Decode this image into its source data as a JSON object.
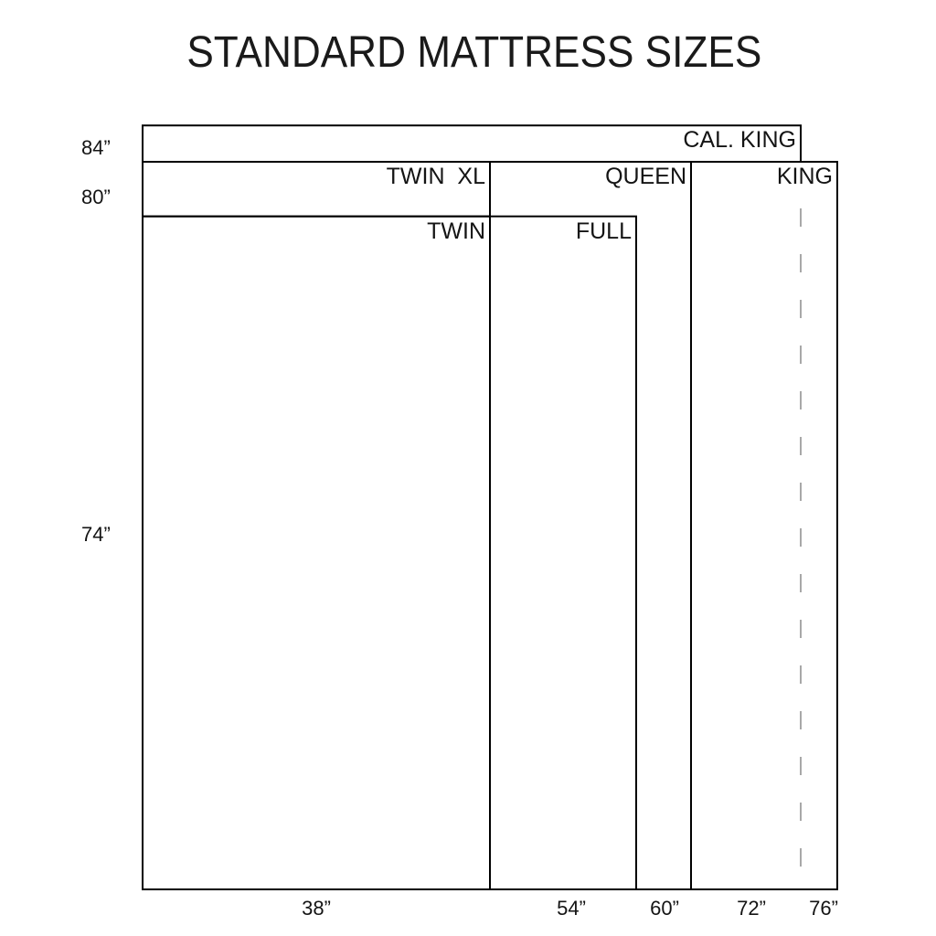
{
  "title": "STANDARD MATTRESS SIZES",
  "diagram": {
    "mattresses": [
      {
        "name": "CAL. KING",
        "width_in": 72,
        "length_in": 84
      },
      {
        "name": "KING",
        "width_in": 76,
        "length_in": 80
      },
      {
        "name": "QUEEN",
        "width_in": 60,
        "length_in": 80
      },
      {
        "name": "TWIN  XL",
        "width_in": 38,
        "length_in": 80
      },
      {
        "name": "FULL",
        "width_in": 54,
        "length_in": 74
      },
      {
        "name": "TWIN",
        "width_in": 38,
        "length_in": 74
      }
    ],
    "length_labels": [
      "84”",
      "80”",
      "74”"
    ],
    "width_labels": [
      "38”",
      "54”",
      "60”",
      "72”",
      "76”"
    ],
    "line_color": "#000000",
    "dashed_line_color": "#a8a8a8"
  }
}
